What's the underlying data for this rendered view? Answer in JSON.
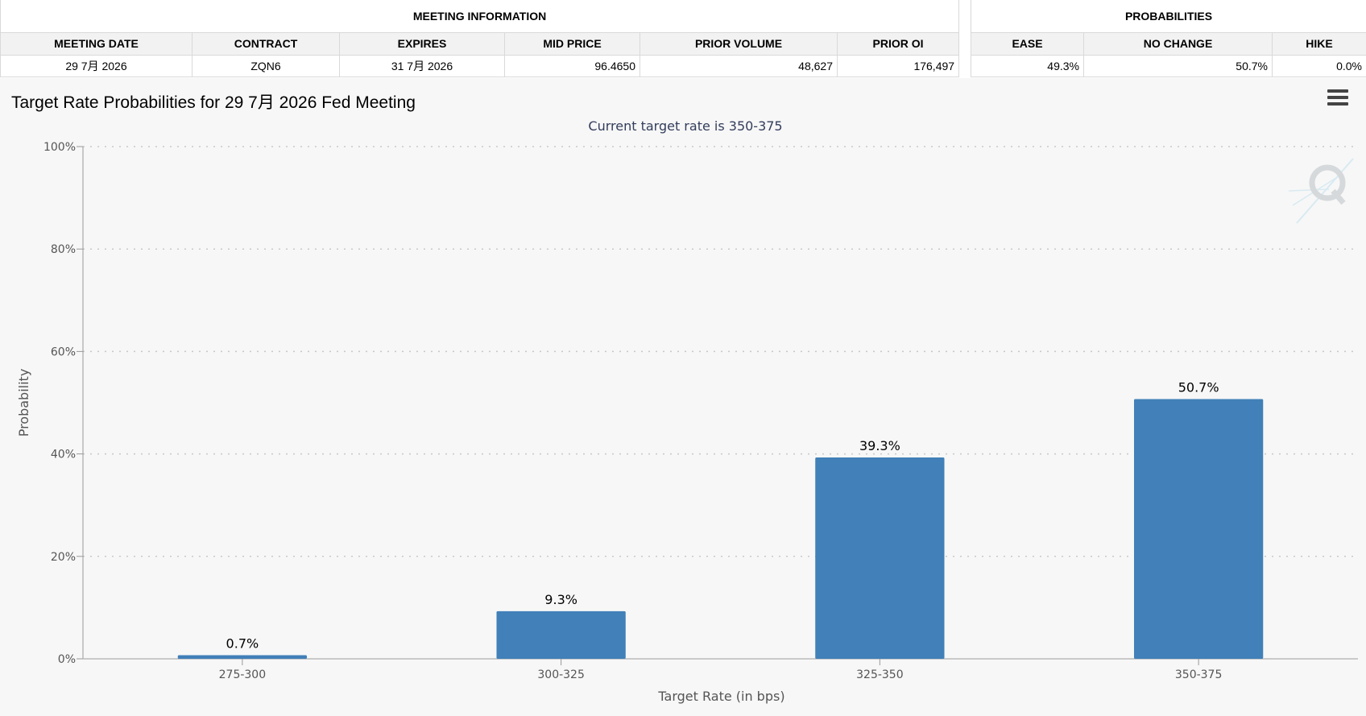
{
  "meeting_info": {
    "header": "MEETING INFORMATION",
    "columns": [
      "MEETING DATE",
      "CONTRACT",
      "EXPIRES",
      "MID PRICE",
      "PRIOR VOLUME",
      "PRIOR OI"
    ],
    "row": [
      "29 7月 2026",
      "ZQN6",
      "31 7月 2026",
      "96.4650",
      "48,627",
      "176,497"
    ]
  },
  "probabilities": {
    "header": "PROBABILITIES",
    "columns": [
      "EASE",
      "NO CHANGE",
      "HIKE"
    ],
    "row": [
      "49.3%",
      "50.7%",
      "0.0%"
    ]
  },
  "chart": {
    "title": "Target Rate Probabilities for 29 7月 2026 Fed Meeting",
    "menu_icon": "hamburger-menu-icon",
    "watermark_icon": "q-logo-icon",
    "bar_color": "#4180b8"
  },
  "chart_data": {
    "type": "bar",
    "title": "Current target rate is 350-375",
    "categories": [
      "275-300",
      "300-325",
      "325-350",
      "350-375"
    ],
    "values": [
      0.7,
      9.3,
      39.3,
      50.7
    ],
    "value_labels": [
      "0.7%",
      "9.3%",
      "39.3%",
      "50.7%"
    ],
    "xlabel": "Target Rate (in bps)",
    "ylabel": "Probability",
    "ylim": [
      0,
      100
    ],
    "yticks": [
      0,
      20,
      40,
      60,
      80,
      100
    ],
    "ytick_labels": [
      "0%",
      "20%",
      "40%",
      "60%",
      "80%",
      "100%"
    ],
    "grid": true
  }
}
